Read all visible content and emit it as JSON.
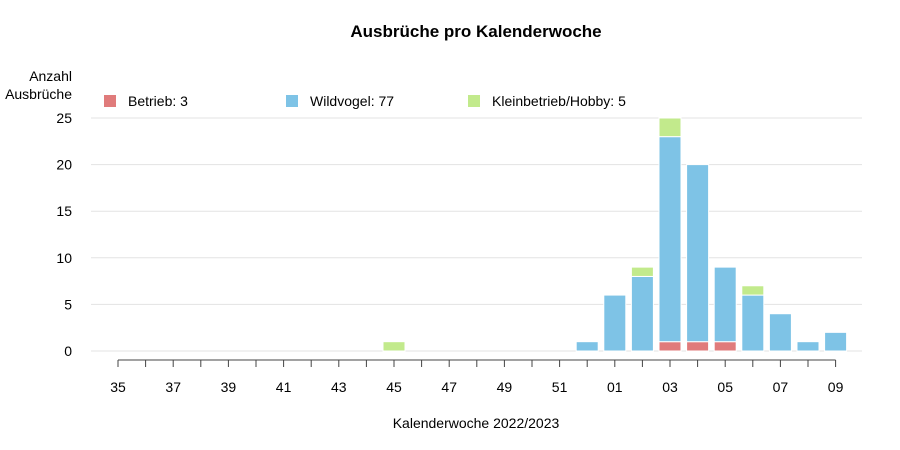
{
  "chart_data": {
    "type": "bar",
    "stacked": true,
    "title": "Ausbrüche pro Kalenderwoche",
    "xlabel": "Kalenderwoche 2022/2023",
    "ylabel": "Anzahl Ausbrüche",
    "ylabel_lines": [
      "Anzahl",
      "Ausbrüche"
    ],
    "ylim": [
      0,
      25
    ],
    "yticks": [
      "0",
      "5",
      "10",
      "15",
      "20",
      "25"
    ],
    "grid": true,
    "legend_position": "top",
    "categories": [
      "35",
      "36",
      "37",
      "38",
      "39",
      "40",
      "41",
      "42",
      "43",
      "44",
      "45",
      "46",
      "47",
      "48",
      "49",
      "50",
      "51",
      "52",
      "01",
      "02",
      "03",
      "04",
      "05",
      "06",
      "07",
      "08",
      "09"
    ],
    "xtick_labels": [
      "35",
      "37",
      "39",
      "41",
      "43",
      "45",
      "47",
      "49",
      "51",
      "01",
      "03",
      "05",
      "07",
      "09"
    ],
    "series": [
      {
        "name": "Betrieb",
        "legend_label": "Betrieb: 3",
        "color": "#e07b7b",
        "values": [
          0,
          0,
          0,
          0,
          0,
          0,
          0,
          0,
          0,
          0,
          0,
          0,
          0,
          0,
          0,
          0,
          0,
          0,
          0,
          0,
          1,
          1,
          1,
          0,
          0,
          0,
          0
        ]
      },
      {
        "name": "Wildvogel",
        "legend_label": "Wildvogel: 77",
        "color": "#7ec3e6",
        "values": [
          0,
          0,
          0,
          0,
          0,
          0,
          0,
          0,
          0,
          0,
          0,
          0,
          0,
          0,
          0,
          0,
          0,
          1,
          6,
          8,
          22,
          19,
          8,
          6,
          4,
          1,
          2
        ]
      },
      {
        "name": "Kleinbetrieb/Hobby",
        "legend_label": "Kleinbetrieb/Hobby: 5",
        "color": "#c2ea8c",
        "values": [
          0,
          0,
          0,
          0,
          0,
          0,
          0,
          0,
          0,
          0,
          1,
          0,
          0,
          0,
          0,
          0,
          0,
          0,
          0,
          1,
          2,
          0,
          0,
          1,
          0,
          0,
          0
        ]
      }
    ]
  }
}
